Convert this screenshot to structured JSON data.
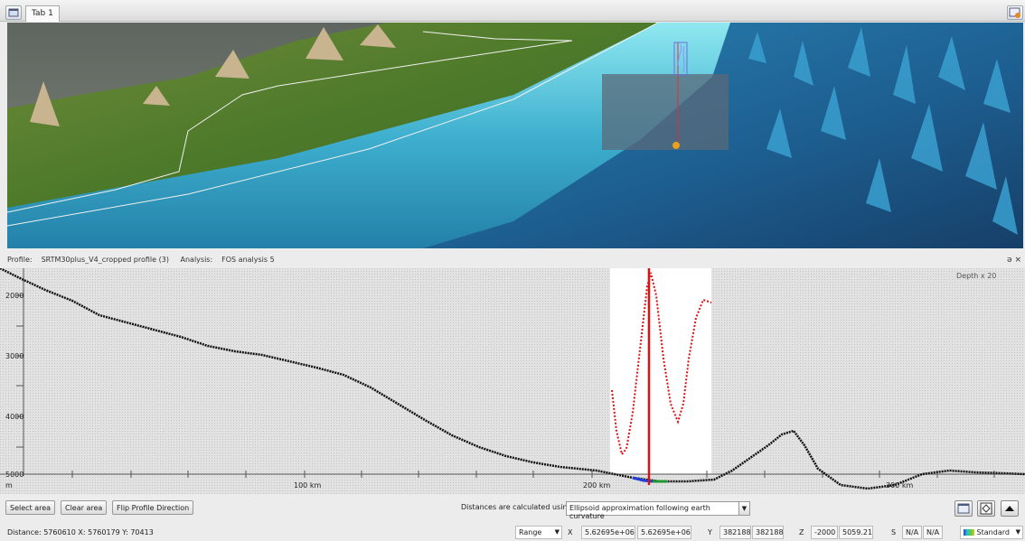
{
  "tabs": [
    {
      "label": "Tab 1"
    }
  ],
  "profile_header": {
    "profile_label": "Profile:",
    "profile_name": "SRTM30plus_V4_cropped profile (3)",
    "analysis_label": "Analysis:",
    "analysis_name": "FOS analysis 5",
    "controls": "ə ×"
  },
  "profile_plot": {
    "depth_scale": "Depth x 20",
    "y_ticks": [
      "2000",
      "3000",
      "4000",
      "5000"
    ],
    "x_ticks": [
      "m",
      "100 km",
      "200 km",
      "300 km"
    ]
  },
  "toolbar": {
    "select_area": "Select area",
    "clear_area": "Clear area",
    "flip_profile": "Flip Profile Direction",
    "distance_label": "Distances are calculated using",
    "distance_method": "Ellipsoid approximation following earth curvature"
  },
  "status": {
    "distance": "Distance: 5760610 X: 5760179 Y: 70413",
    "mode": "Range",
    "x_label": "X",
    "x_val1": "5.62695e+06",
    "x_val2": "5.62695e+06",
    "y_label": "Y",
    "y_val1": "382188",
    "y_val2": "382188",
    "z_label": "Z",
    "z_val1": "-2000",
    "z_val2": "5059.21",
    "s_label": "S",
    "s_val1": "N/A",
    "s_val2": "N/A",
    "colormap": "Standard"
  }
}
